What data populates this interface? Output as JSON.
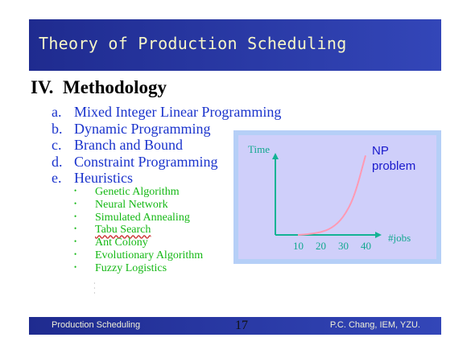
{
  "slide": {
    "title": "Theory of Production Scheduling",
    "section": {
      "number": "IV.",
      "heading": "Methodology"
    },
    "methods": [
      {
        "letter": "a.",
        "label": "Mixed Integer Linear Programming"
      },
      {
        "letter": "b.",
        "label": "Dynamic Programming"
      },
      {
        "letter": "c.",
        "label": "Branch and Bound"
      },
      {
        "letter": "d.",
        "label": "Constraint Programming"
      },
      {
        "letter": "e.",
        "label": "Heuristics"
      }
    ],
    "heuristics": [
      "Genetic Algorithm",
      "Neural Network",
      "Simulated Annealing",
      "Tabu Search",
      "Ant Colony",
      "Evolutionary Algorithm",
      "Fuzzy Logistics"
    ],
    "bullet_glyph": "•"
  },
  "chart_data": {
    "type": "line",
    "ylabel": "Time",
    "xlabel": "#jobs",
    "annotation": [
      "NP",
      "problem"
    ],
    "x_ticks": [
      "10",
      "20",
      "30",
      "40"
    ],
    "series": [
      {
        "x": [
          10,
          15,
          20,
          25,
          30,
          35,
          40
        ],
        "y": [
          0,
          1,
          3,
          8,
          20,
          45,
          95
        ]
      }
    ],
    "xlim": [
      0,
      45
    ],
    "ylim": [
      0,
      100
    ],
    "grid": false,
    "colors": {
      "axes": "#13b394",
      "curve": "#ff99b3",
      "tick_text": "#13a890",
      "annotation": "#1a1acc"
    }
  },
  "footer": {
    "left": "Production Scheduling",
    "page": "17",
    "right": "P.C. Chang, IEM, YZU."
  },
  "colors": {
    "title_bar": "#2a3aa6",
    "title_text": "#f7f7c8",
    "method_text": "#1a33cc",
    "heuristic_text": "#14b814",
    "chart_frame": "#b5cff7",
    "chart_bg": "#cfcffa"
  }
}
